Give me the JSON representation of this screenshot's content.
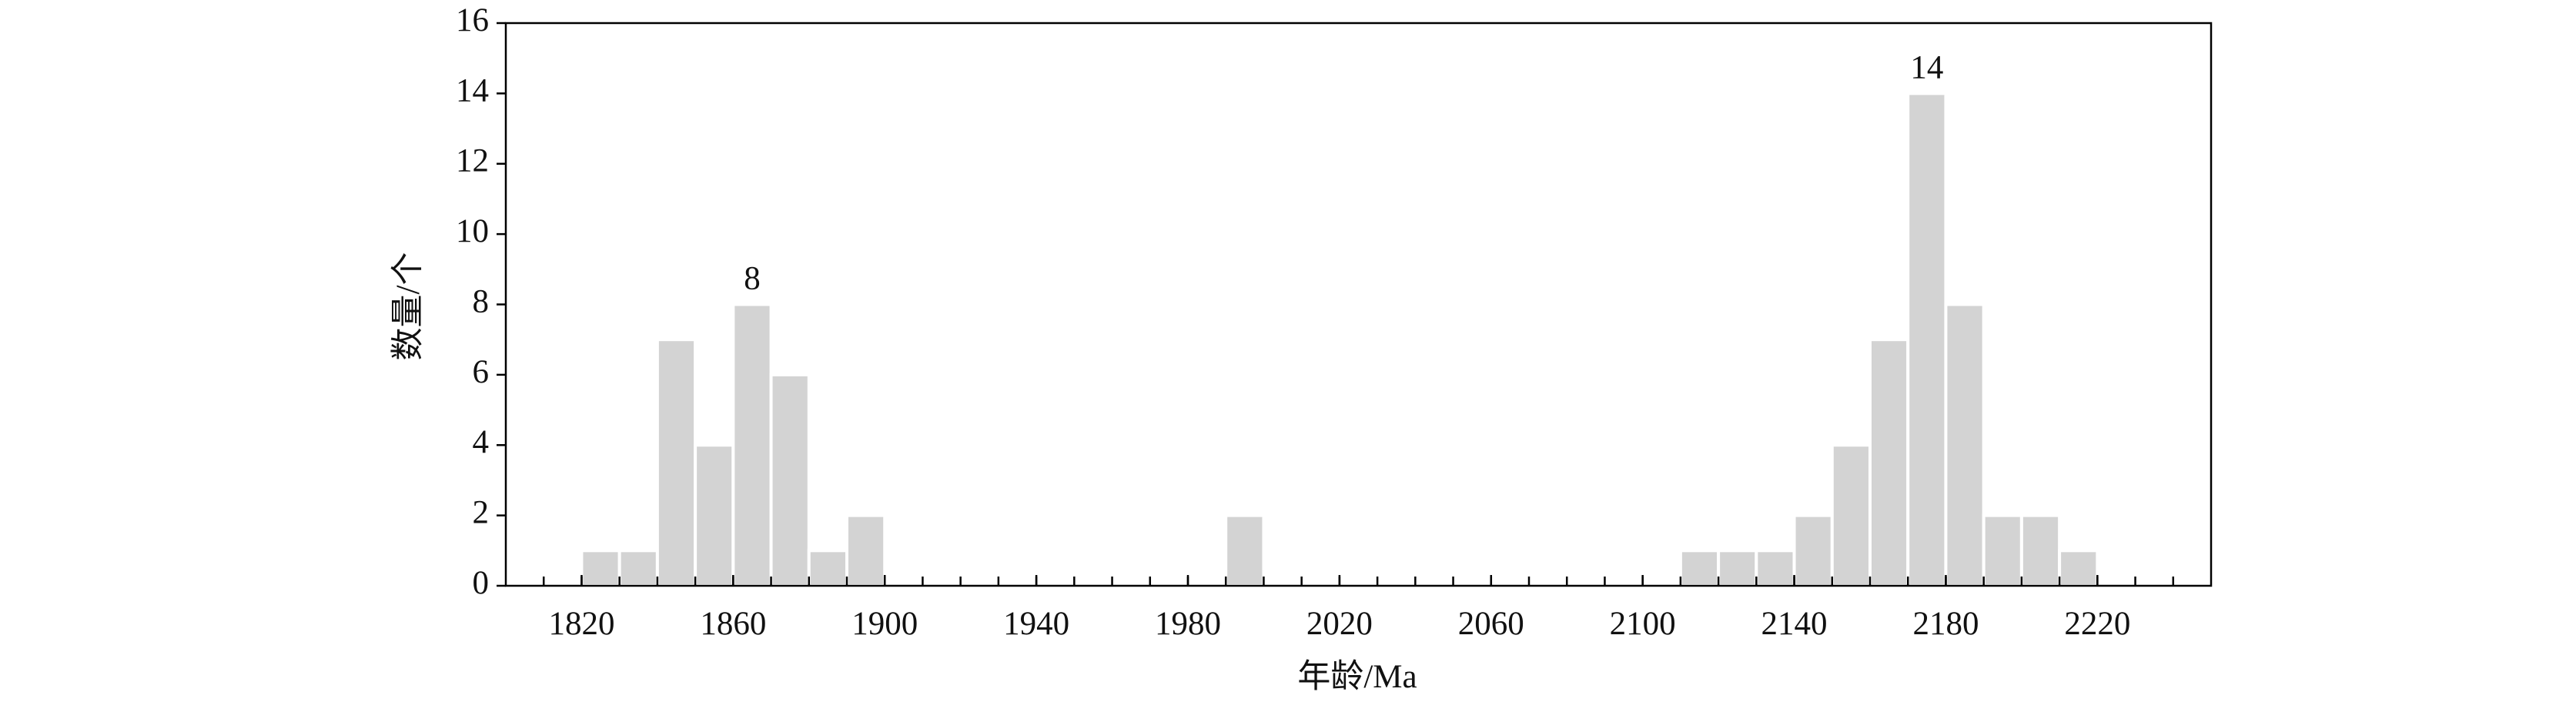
{
  "chart_data": {
    "type": "histogram",
    "x_label": "年龄/Ma",
    "y_label": "数量/个",
    "bins": [
      1820,
      1830,
      1840,
      1850,
      1860,
      1870,
      1880,
      1890,
      1900,
      1910,
      1920,
      1930,
      1940,
      1950,
      1960,
      1970,
      1980,
      1990,
      2000,
      2010,
      2020,
      2030,
      2040,
      2050,
      2060,
      2070,
      2080,
      2090,
      2100,
      2110,
      2120,
      2130,
      2140,
      2150,
      2160,
      2170,
      2180,
      2190,
      2200,
      2210,
      2220
    ],
    "values": [
      1,
      1,
      7,
      4,
      8,
      6,
      1,
      2,
      0,
      0,
      0,
      0,
      0,
      0,
      0,
      0,
      0,
      2,
      0,
      0,
      0,
      0,
      0,
      0,
      0,
      0,
      0,
      0,
      0,
      1,
      1,
      1,
      2,
      4,
      7,
      14,
      8,
      2,
      2,
      1
    ],
    "value_labels": [
      null,
      null,
      null,
      null,
      "8",
      null,
      null,
      null,
      null,
      null,
      null,
      null,
      null,
      null,
      null,
      null,
      null,
      null,
      null,
      null,
      null,
      null,
      null,
      null,
      null,
      null,
      null,
      null,
      null,
      null,
      null,
      null,
      null,
      null,
      null,
      "14",
      null,
      null,
      null,
      null
    ],
    "color": "#d3d3d3",
    "xlim": [
      1800,
      2250
    ],
    "xticks": [
      1820,
      1860,
      1900,
      1940,
      1980,
      2020,
      2060,
      2100,
      2140,
      2180,
      2220
    ],
    "xminorticks": [
      1810,
      1820,
      1830,
      1840,
      1850,
      1860,
      1870,
      1880,
      1890,
      1900,
      1910,
      1920,
      1930,
      1940,
      1950,
      1960,
      1970,
      1980,
      1990,
      2000,
      2010,
      2020,
      2030,
      2040,
      2050,
      2060,
      2070,
      2080,
      2090,
      2100,
      2110,
      2120,
      2130,
      2140,
      2150,
      2160,
      2170,
      2180,
      2190,
      2200,
      2210,
      2220,
      2230,
      2240
    ],
    "ylim": [
      0,
      16
    ],
    "yticks": [
      0,
      2,
      4,
      6,
      8,
      10,
      12,
      14,
      16
    ]
  }
}
